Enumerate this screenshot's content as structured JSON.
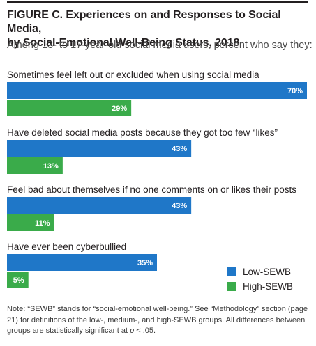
{
  "figure": {
    "title_line1": "FIGURE C. Experiences on and Responses to Social Media,",
    "title_line2": "by Social-Emotional Well-Being Status, 2018",
    "subtitle": "Among 13- to 17-year-old social media users, percent who say they:",
    "note_part1": "Note: “SEWB” stands for “social-emotional well-being.” See “Methodology” section (page 21) for definitions of the low-, medium-, and high-SEWB groups. All differences between groups are statistically significant at ",
    "note_italic": "p",
    "note_part2": " < .05."
  },
  "colors": {
    "low": "#1f77c8",
    "high": "#3aab4a",
    "text": "#231f20"
  },
  "chart_data": {
    "type": "bar",
    "orientation": "horizontal",
    "categories": [
      "Sometimes feel left out or excluded when using social media",
      "Have deleted social media posts because they got too few “likes”",
      "Feel bad about themselves if no one comments on or likes their posts",
      "Have ever been cyberbullied"
    ],
    "series": [
      {
        "name": "Low-SEWB",
        "values": [
          70,
          43,
          43,
          35
        ],
        "labels": [
          "70%",
          "43%",
          "43%",
          "35%"
        ]
      },
      {
        "name": "High-SEWB",
        "values": [
          29,
          13,
          11,
          5
        ],
        "labels": [
          "29%",
          "13%",
          "11%",
          "5%"
        ]
      }
    ],
    "xlim": [
      0,
      70
    ],
    "grid": false,
    "legend_position": "bottom-right"
  }
}
